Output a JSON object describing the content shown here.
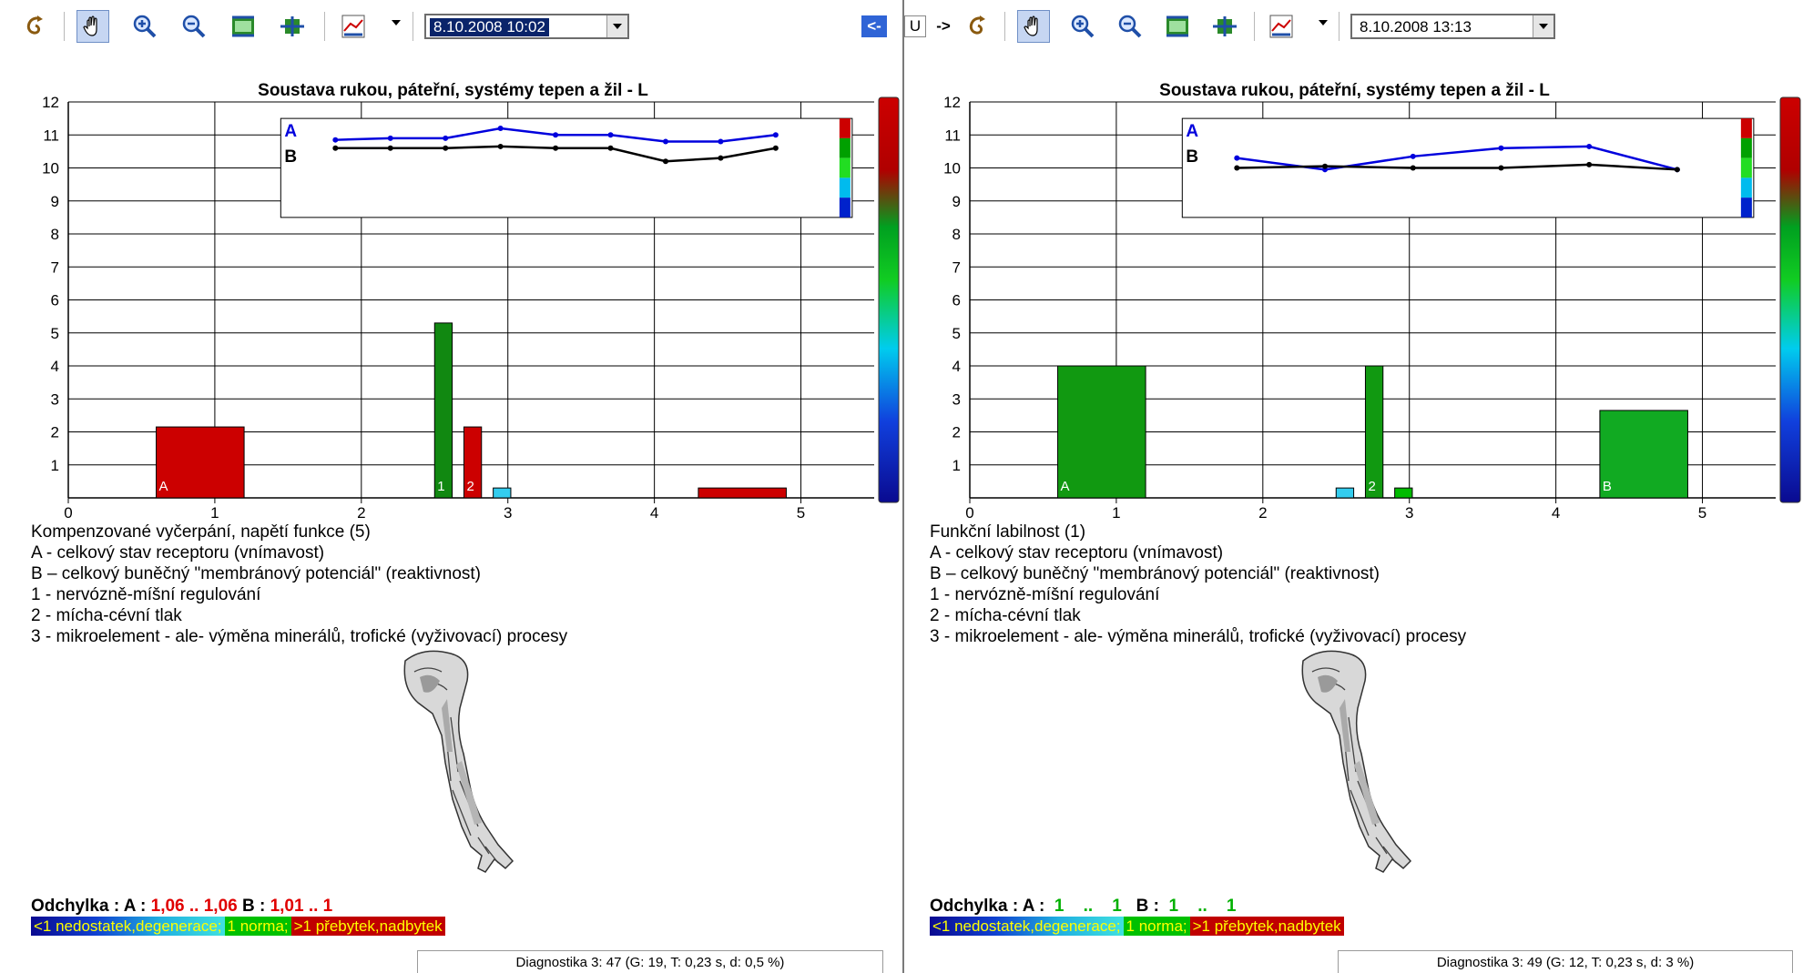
{
  "toolbar": {
    "left_datetime": "8.10.2008 10:02",
    "right_datetime": "8.10.2008 13:13",
    "nav_left": "<-",
    "nav_mid": "U",
    "nav_right": "->"
  },
  "left": {
    "chart_data": {
      "type": "bar",
      "title": "Soustava rukou, páteřní, systémy tepen a žil - L",
      "ylim": [
        0,
        12
      ],
      "xlim": [
        0,
        5.5
      ],
      "y_ticks": [
        "1",
        "2",
        "3",
        "4",
        "5",
        "6",
        "7",
        "8",
        "9",
        "10",
        "11",
        "12"
      ],
      "x_ticks": [
        "0",
        "1",
        "2",
        "3",
        "4",
        "5"
      ],
      "bars": [
        {
          "label": "A",
          "x0": 0.6,
          "x1": 1.2,
          "value": 2.15,
          "color": "#cc0000"
        },
        {
          "label": "1",
          "x0": 2.5,
          "x1": 2.62,
          "value": 5.3,
          "color": "#118811"
        },
        {
          "label": "2",
          "x0": 2.7,
          "x1": 2.82,
          "value": 2.15,
          "color": "#cc0000"
        },
        {
          "label": "",
          "x0": 2.9,
          "x1": 3.02,
          "value": 0.3,
          "color": "#33ccee"
        },
        {
          "label": "",
          "x0": 4.3,
          "x1": 4.9,
          "value": 0.3,
          "color": "#cc0000"
        }
      ],
      "inset": {
        "series": [
          {
            "name": "A",
            "color": "#0000dd",
            "values": [
              10.85,
              10.9,
              10.9,
              11.2,
              11.0,
              11.0,
              10.8,
              10.8,
              11.0
            ]
          },
          {
            "name": "B",
            "color": "#000000",
            "values": [
              10.6,
              10.6,
              10.6,
              10.65,
              10.6,
              10.6,
              10.2,
              10.3,
              10.6
            ]
          }
        ]
      }
    },
    "state": "Kompenzované vyčerpání, napětí funkce (5)",
    "lines": [
      "A - celkový stav receptoru (vnímavost)",
      "B – celkový buněčný \"membránový potenciál\" (reaktivnost)",
      "1 - nervózně-míšní regulování",
      "2 - mícha-cévní tlak",
      "3 - mikroelement - ale- výměna minerálů, trofické (vyživovací) procesy"
    ],
    "odch": {
      "label": "Odchylka : A :",
      "a_val": " 1,06 .. 1,06",
      "b_label": " B :",
      "b_val": " 1,01 ..   1"
    },
    "status": "Diagnostika 3: 47 (G: 19, T: 0,23 s, d: 0,5 %)"
  },
  "right": {
    "chart_data": {
      "type": "bar",
      "title": "Soustava rukou, páteřní, systémy tepen a žil - L",
      "ylim": [
        0,
        12
      ],
      "xlim": [
        0,
        5.5
      ],
      "y_ticks": [
        "1",
        "2",
        "3",
        "4",
        "5",
        "6",
        "7",
        "8",
        "9",
        "10",
        "11",
        "12"
      ],
      "x_ticks": [
        "0",
        "1",
        "2",
        "3",
        "4",
        "5"
      ],
      "bars": [
        {
          "label": "A",
          "x0": 0.6,
          "x1": 1.2,
          "value": 4.0,
          "color": "#119911"
        },
        {
          "label": "",
          "x0": 2.5,
          "x1": 2.62,
          "value": 0.3,
          "color": "#33ccee"
        },
        {
          "label": "2",
          "x0": 2.7,
          "x1": 2.82,
          "value": 4.0,
          "color": "#119911"
        },
        {
          "label": "",
          "x0": 2.9,
          "x1": 3.02,
          "value": 0.3,
          "color": "#00bb00"
        },
        {
          "label": "B",
          "x0": 4.3,
          "x1": 4.9,
          "value": 2.65,
          "color": "#11aa22"
        }
      ],
      "inset": {
        "series": [
          {
            "name": "A",
            "color": "#0000dd",
            "values": [
              10.3,
              9.95,
              10.35,
              10.6,
              10.65,
              9.95
            ]
          },
          {
            "name": "B",
            "color": "#000000",
            "values": [
              10.0,
              10.05,
              10.0,
              10.0,
              10.1,
              9.95
            ]
          }
        ]
      }
    },
    "state": "Funkční labilnost (1)",
    "lines": [
      "A - celkový stav receptoru (vnímavost)",
      "B – celkový buněčný \"membránový potenciál\" (reaktivnost)",
      "1 - nervózně-míšní regulování",
      "2 - mícha-cévní tlak",
      "3 - mikroelement - ale- výměna minerálů, trofické (vyživovací) procesy"
    ],
    "odch": {
      "label": "Odchylka : A :",
      "a_val": "  1    ..    1",
      "b_label": "   B :",
      "b_val": "  1    ..    1"
    },
    "status": "Diagnostika 3: 49 (G: 12, T: 0,23 s, d: 3 %)"
  },
  "legend": {
    "low": "<1 nedostatek,degenerace;",
    "norm": " 1 norma;",
    "high": " >1 přebytek,nadbytek"
  },
  "colors": {
    "low_bg": "#1010a0",
    "norm_bg": "#00cc00",
    "high_bg": "#cc0000"
  }
}
